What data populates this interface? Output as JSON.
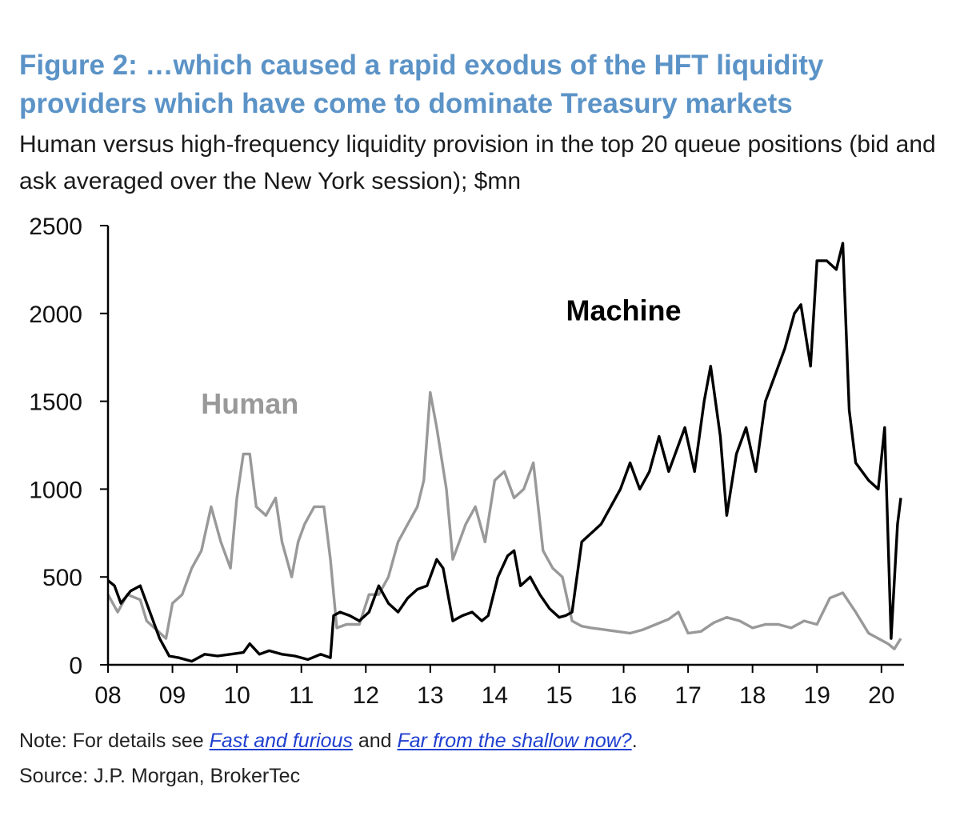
{
  "title": "Figure 2: …which caused a rapid exodus of the HFT liquidity providers which have come to dominate Treasury markets",
  "subtitle": "Human versus high-frequency liquidity provision in the top 20 queue positions (bid and ask averaged over the New York session); $mn",
  "note": {
    "prefix": "Note: For details see ",
    "link1": "Fast and furious",
    "middle": " and ",
    "link2": "Far from the shallow now?",
    "suffix": "."
  },
  "source": "Source: J.P. Morgan, BrokerTec",
  "colors": {
    "human": "#999999",
    "machine": "#000000",
    "title": "#5b93c7"
  },
  "chart_data": {
    "type": "line",
    "ylim": [
      0,
      2500
    ],
    "xlim": [
      2008.0,
      2020.35
    ],
    "yticks": [
      0,
      500,
      1000,
      1500,
      2000,
      2500
    ],
    "xticks": [
      {
        "x": 2008,
        "label": "08"
      },
      {
        "x": 2009,
        "label": "09"
      },
      {
        "x": 2010,
        "label": "10"
      },
      {
        "x": 2011,
        "label": "11"
      },
      {
        "x": 2012,
        "label": "12"
      },
      {
        "x": 2013,
        "label": "13"
      },
      {
        "x": 2014,
        "label": "14"
      },
      {
        "x": 2015,
        "label": "15"
      },
      {
        "x": 2016,
        "label": "16"
      },
      {
        "x": 2017,
        "label": "17"
      },
      {
        "x": 2018,
        "label": "18"
      },
      {
        "x": 2019,
        "label": "19"
      },
      {
        "x": 2020,
        "label": "20"
      }
    ],
    "annotations": [
      {
        "text": "Human",
        "series": "Human"
      },
      {
        "text": "Machine",
        "series": "Machine"
      }
    ],
    "series": [
      {
        "name": "Human",
        "x": [
          2008.0,
          2008.15,
          2008.3,
          2008.5,
          2008.6,
          2008.75,
          2008.9,
          2009.0,
          2009.15,
          2009.3,
          2009.45,
          2009.6,
          2009.75,
          2009.9,
          2010.0,
          2010.1,
          2010.2,
          2010.3,
          2010.45,
          2010.6,
          2010.7,
          2010.85,
          2010.95,
          2011.05,
          2011.2,
          2011.35,
          2011.45,
          2011.55,
          2011.7,
          2011.9,
          2012.05,
          2012.2,
          2012.35,
          2012.5,
          2012.65,
          2012.8,
          2012.9,
          2013.0,
          2013.1,
          2013.25,
          2013.35,
          2013.45,
          2013.55,
          2013.7,
          2013.85,
          2014.0,
          2014.15,
          2014.3,
          2014.45,
          2014.6,
          2014.75,
          2014.9,
          2015.05,
          2015.2,
          2015.35,
          2015.5,
          2015.7,
          2015.9,
          2016.1,
          2016.3,
          2016.5,
          2016.7,
          2016.85,
          2017.0,
          2017.2,
          2017.4,
          2017.6,
          2017.8,
          2018.0,
          2018.2,
          2018.4,
          2018.6,
          2018.8,
          2019.0,
          2019.2,
          2019.4,
          2019.6,
          2019.8,
          2020.0,
          2020.1,
          2020.2,
          2020.3
        ],
        "values": [
          400,
          300,
          400,
          370,
          250,
          200,
          150,
          350,
          400,
          550,
          650,
          900,
          700,
          550,
          950,
          1200,
          1200,
          900,
          850,
          950,
          700,
          500,
          700,
          800,
          900,
          900,
          600,
          210,
          230,
          230,
          400,
          400,
          500,
          700,
          800,
          900,
          1050,
          1550,
          1350,
          1000,
          600,
          700,
          800,
          900,
          700,
          1050,
          1100,
          950,
          1000,
          1150,
          650,
          550,
          500,
          250,
          220,
          210,
          200,
          190,
          180,
          200,
          230,
          260,
          300,
          180,
          190,
          240,
          270,
          250,
          210,
          230,
          230,
          210,
          250,
          230,
          380,
          410,
          300,
          180,
          140,
          120,
          90,
          150
        ]
      },
      {
        "name": "Machine",
        "x": [
          2008.0,
          2008.1,
          2008.2,
          2008.35,
          2008.5,
          2008.65,
          2008.8,
          2008.95,
          2009.1,
          2009.3,
          2009.5,
          2009.7,
          2009.9,
          2010.1,
          2010.2,
          2010.35,
          2010.5,
          2010.7,
          2010.9,
          2011.1,
          2011.3,
          2011.45,
          2011.5,
          2011.6,
          2011.75,
          2011.9,
          2012.05,
          2012.2,
          2012.35,
          2012.5,
          2012.65,
          2012.8,
          2012.95,
          2013.1,
          2013.2,
          2013.35,
          2013.5,
          2013.65,
          2013.8,
          2013.9,
          2014.05,
          2014.2,
          2014.3,
          2014.4,
          2014.55,
          2014.7,
          2014.85,
          2015.0,
          2015.1,
          2015.2,
          2015.35,
          2015.5,
          2015.65,
          2015.8,
          2015.95,
          2016.1,
          2016.25,
          2016.4,
          2016.55,
          2016.7,
          2016.85,
          2016.95,
          2017.1,
          2017.25,
          2017.35,
          2017.5,
          2017.6,
          2017.75,
          2017.9,
          2018.05,
          2018.2,
          2018.35,
          2018.5,
          2018.65,
          2018.75,
          2018.9,
          2019.0,
          2019.15,
          2019.3,
          2019.4,
          2019.5,
          2019.6,
          2019.7,
          2019.8,
          2019.95,
          2020.05,
          2020.15,
          2020.25,
          2020.3
        ],
        "values": [
          480,
          450,
          350,
          420,
          450,
          300,
          150,
          50,
          40,
          20,
          60,
          50,
          60,
          70,
          120,
          60,
          80,
          60,
          50,
          30,
          60,
          40,
          280,
          300,
          280,
          250,
          300,
          450,
          350,
          300,
          380,
          430,
          450,
          600,
          550,
          250,
          280,
          300,
          250,
          280,
          500,
          620,
          650,
          450,
          500,
          400,
          320,
          270,
          280,
          300,
          700,
          750,
          800,
          900,
          1000,
          1150,
          1000,
          1100,
          1300,
          1100,
          1250,
          1350,
          1100,
          1500,
          1700,
          1300,
          850,
          1200,
          1350,
          1100,
          1500,
          1650,
          1800,
          2000,
          2050,
          1700,
          2300,
          2300,
          2250,
          2400,
          1450,
          1150,
          1100,
          1050,
          1000,
          1350,
          150,
          800,
          950
        ]
      }
    ]
  }
}
